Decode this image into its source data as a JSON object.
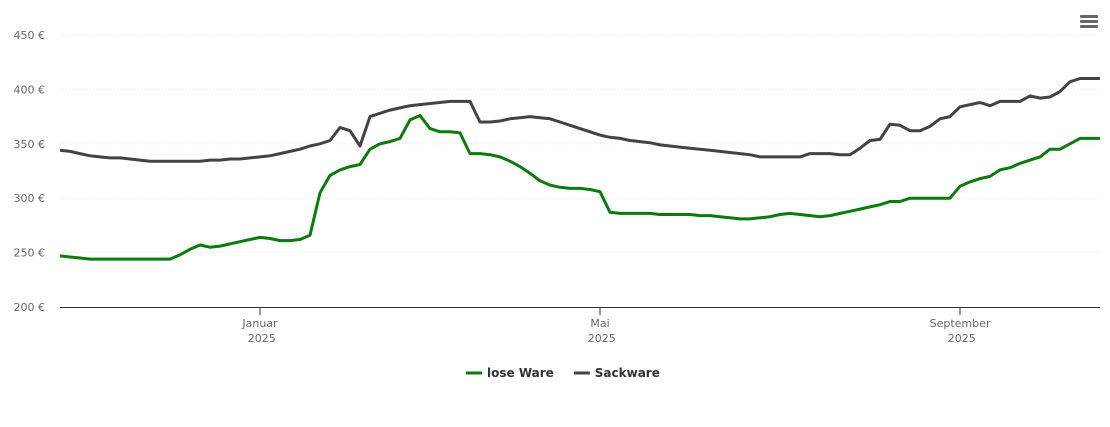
{
  "chart_data": {
    "type": "line",
    "categories": [
      null,
      null,
      null,
      null,
      null,
      null,
      null,
      null,
      null,
      null,
      null,
      null,
      null,
      null,
      null,
      null,
      null,
      null,
      null,
      null,
      "Januar 2025",
      null,
      null,
      null,
      null,
      null,
      null,
      null,
      null,
      null,
      null,
      null,
      null,
      null,
      null,
      null,
      null,
      null,
      null,
      null,
      null,
      null,
      null,
      null,
      null,
      null,
      null,
      null,
      null,
      null,
      null,
      null,
      null,
      null,
      "Mai 2025",
      null,
      null,
      null,
      null,
      null,
      null,
      null,
      null,
      null,
      null,
      null,
      null,
      null,
      null,
      null,
      null,
      null,
      null,
      null,
      null,
      null,
      null,
      null,
      null,
      null,
      null,
      null,
      null,
      null,
      null,
      null,
      null,
      null,
      null,
      null,
      "September 2025",
      null,
      null,
      null,
      null,
      null,
      null,
      null,
      null,
      null,
      null,
      null,
      null,
      null,
      null
    ],
    "series": [
      {
        "name": "lose Ware",
        "color": "#0c7a0c",
        "values": [
          247,
          246,
          245,
          244,
          244,
          244,
          244,
          244,
          244,
          244,
          244,
          244,
          248,
          253,
          257,
          255,
          256,
          258,
          260,
          262,
          264,
          263,
          261,
          261,
          262,
          266,
          305,
          321,
          326,
          329,
          331,
          345,
          350,
          352,
          355,
          372,
          376,
          364,
          361,
          361,
          360,
          341,
          341,
          340,
          338,
          334,
          329,
          323,
          316,
          312,
          310,
          309,
          309,
          308,
          306,
          287,
          286,
          286,
          286,
          286,
          285,
          285,
          285,
          285,
          284,
          284,
          283,
          282,
          281,
          281,
          282,
          283,
          285,
          286,
          285,
          284,
          283,
          284,
          286,
          288,
          290,
          292,
          294,
          297,
          297,
          300,
          300,
          300,
          300,
          300,
          311,
          315,
          318,
          320,
          326,
          328,
          332,
          335,
          338,
          345,
          345,
          350,
          355,
          355,
          355
        ]
      },
      {
        "name": "Sackware",
        "color": "#434343",
        "values": [
          344,
          343,
          341,
          339,
          338,
          337,
          337,
          336,
          335,
          334,
          334,
          334,
          334,
          334,
          334,
          335,
          335,
          336,
          336,
          337,
          338,
          339,
          341,
          343,
          345,
          348,
          350,
          353,
          365,
          362,
          348,
          375,
          378,
          381,
          383,
          385,
          386,
          387,
          388,
          389,
          389,
          389,
          370,
          370,
          371,
          373,
          374,
          375,
          374,
          373,
          370,
          367,
          364,
          361,
          358,
          356,
          355,
          353,
          352,
          351,
          349,
          348,
          347,
          346,
          345,
          344,
          343,
          342,
          341,
          340,
          338,
          338,
          338,
          338,
          338,
          341,
          341,
          341,
          340,
          340,
          346,
          353,
          354,
          368,
          367,
          362,
          362,
          366,
          373,
          375,
          384,
          386,
          388,
          385,
          389,
          389,
          389,
          394,
          392,
          393,
          398,
          407,
          410,
          410,
          410
        ]
      }
    ],
    "ylim": [
      200,
      450
    ],
    "yticks": [
      {
        "value": 200,
        "label": "200 €"
      },
      {
        "value": 250,
        "label": "250 €"
      },
      {
        "value": 300,
        "label": "300 €"
      },
      {
        "value": 350,
        "label": "350 €"
      },
      {
        "value": 400,
        "label": "400 €"
      },
      {
        "value": 450,
        "label": "450 €"
      }
    ],
    "grid": true,
    "legend": "bottom"
  }
}
